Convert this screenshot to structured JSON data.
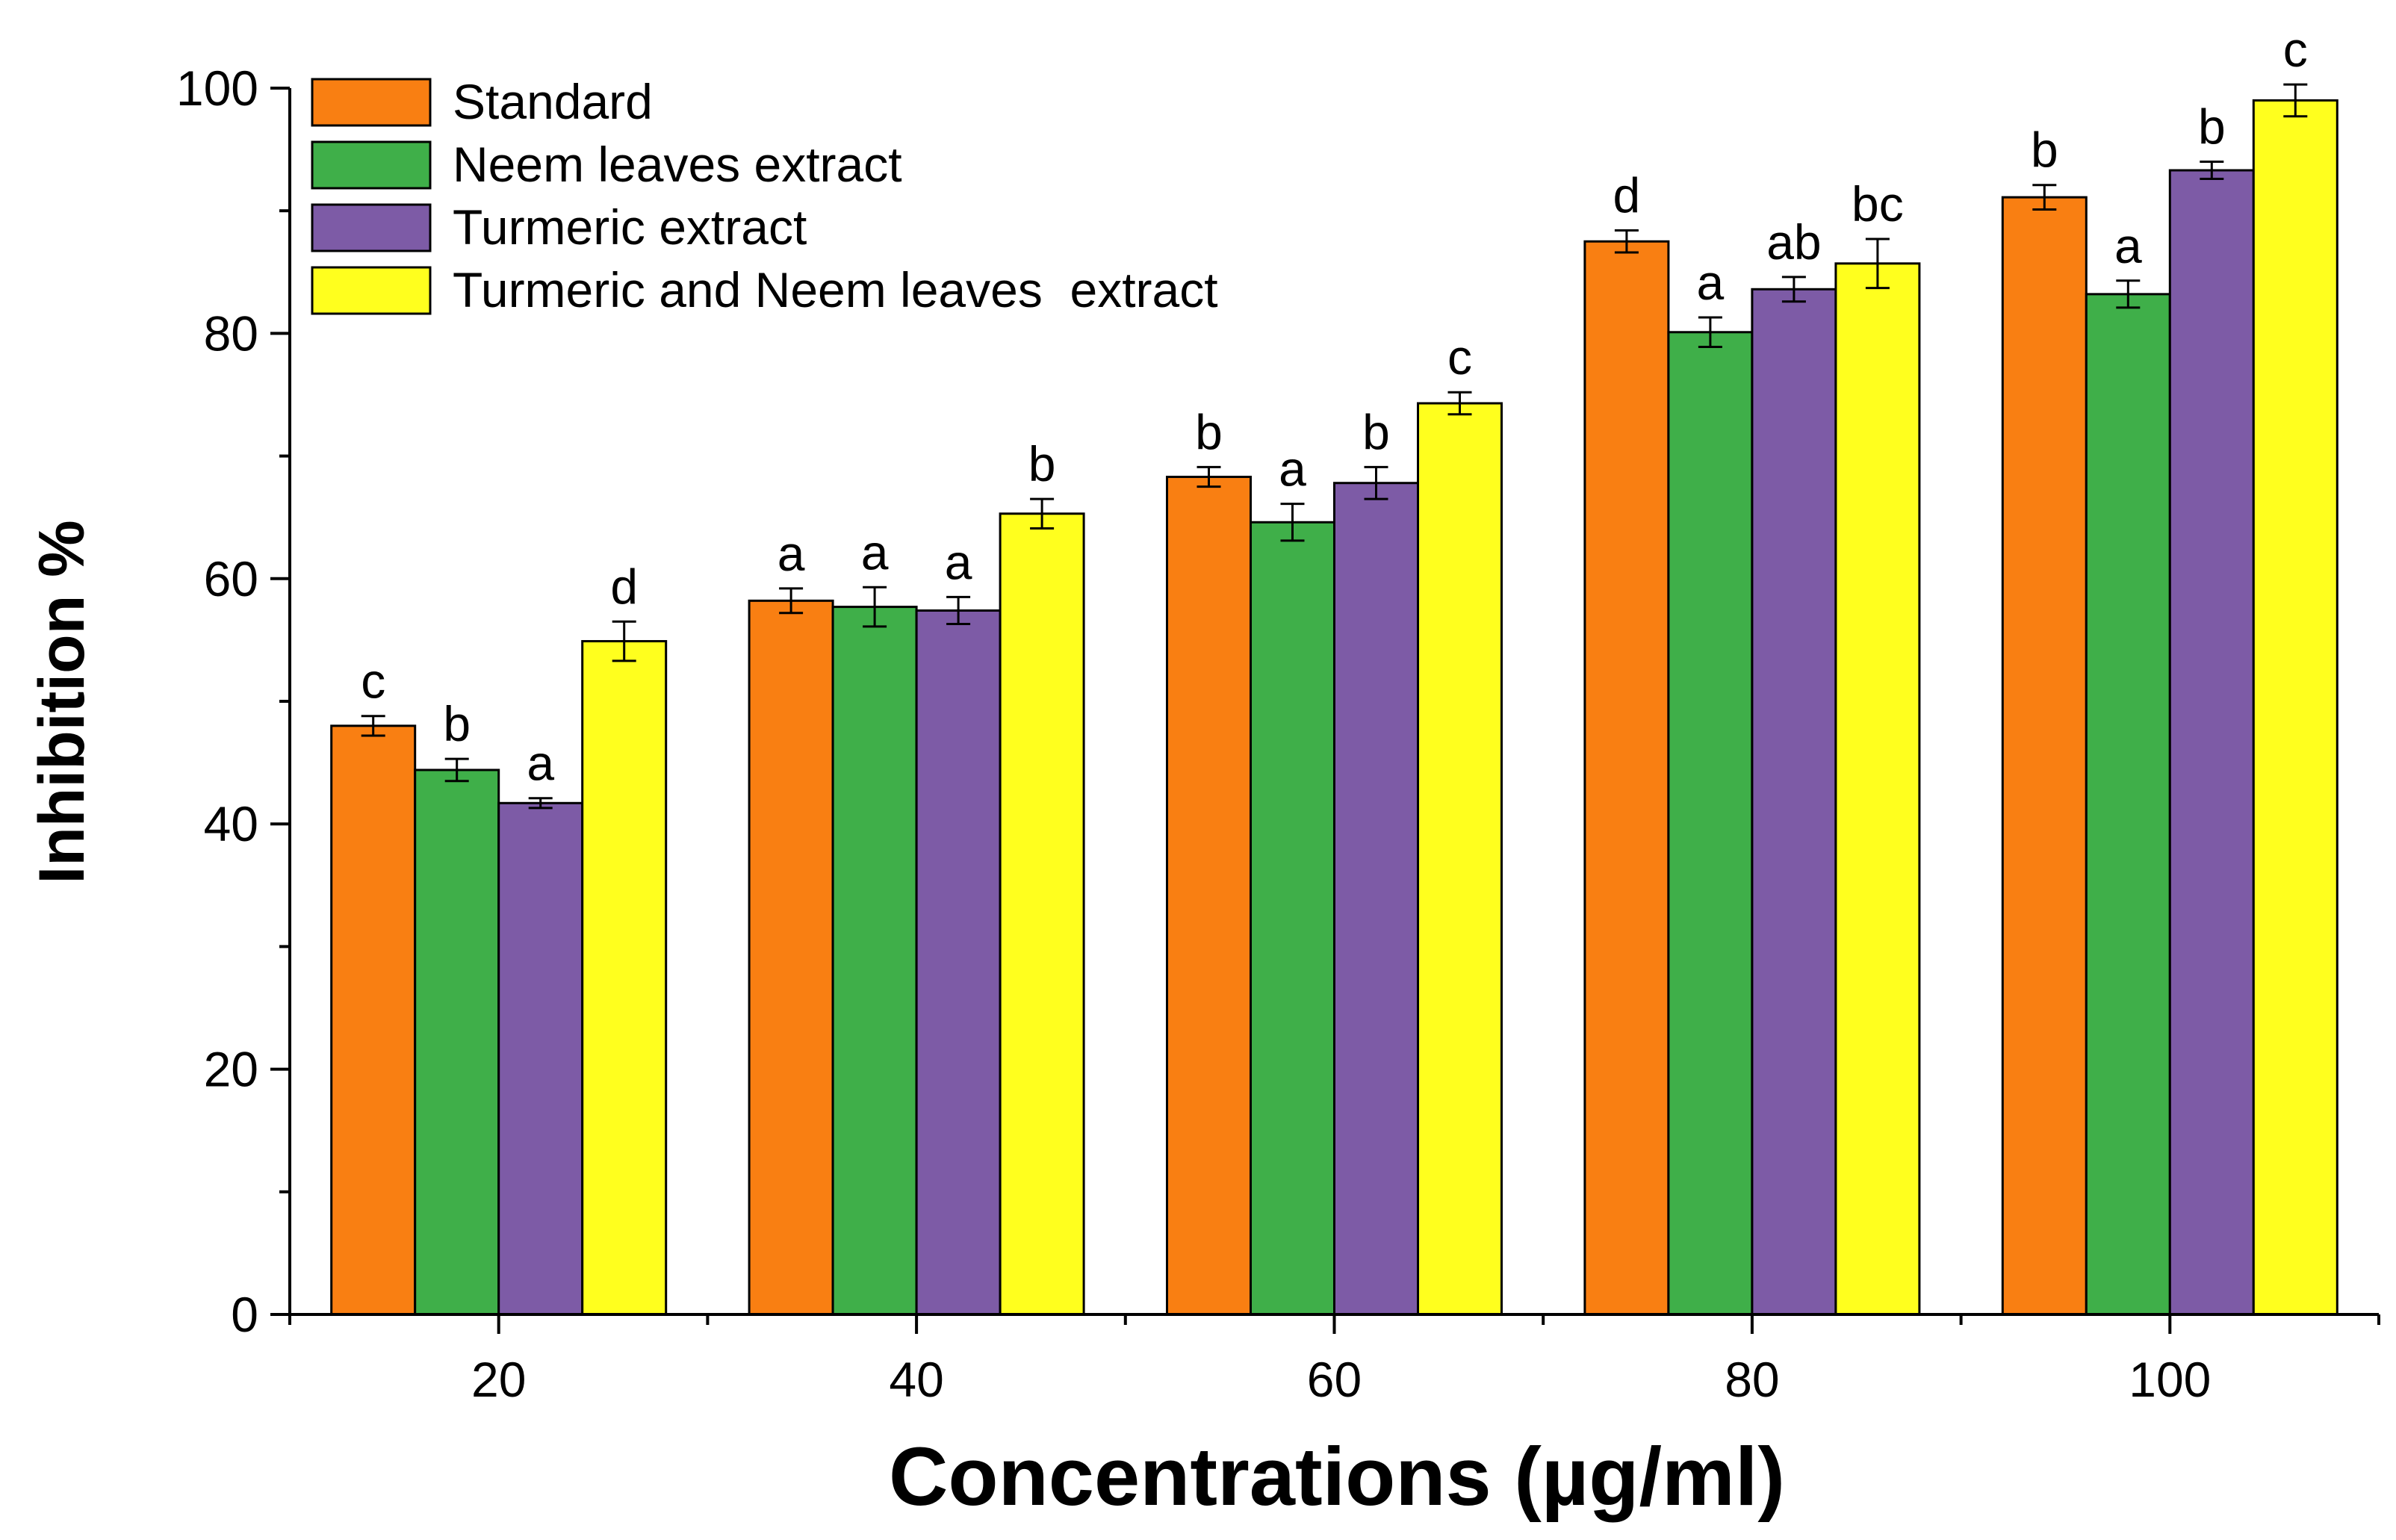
{
  "chart_data": {
    "type": "bar",
    "title": "",
    "xlabel": "Concentrations (µg/ml)",
    "ylabel": "Inhibition %",
    "categories": [
      "20",
      "40",
      "60",
      "80",
      "100"
    ],
    "ylim": [
      0,
      100
    ],
    "yticks": [
      "0",
      "20",
      "40",
      "60",
      "80",
      "100"
    ],
    "legend_position": "top-left",
    "grid": false,
    "series": [
      {
        "name": "Standard",
        "color": "#F97F12",
        "values": [
          48.0,
          58.2,
          68.3,
          87.5,
          91.1
        ],
        "errors": [
          0.8,
          1.0,
          0.8,
          0.9,
          1.0
        ],
        "labels": [
          "c",
          "a",
          "b",
          "d",
          "b"
        ]
      },
      {
        "name": "Neem leaves extract",
        "color": "#3FAF49",
        "values": [
          44.4,
          57.7,
          64.6,
          80.1,
          83.2
        ],
        "errors": [
          0.9,
          1.6,
          1.5,
          1.2,
          1.1
        ],
        "labels": [
          "b",
          "a",
          "a",
          "a",
          "a"
        ]
      },
      {
        "name": "Turmeric extract",
        "color": "#7D5BA6",
        "values": [
          41.7,
          57.4,
          67.8,
          83.6,
          93.3
        ],
        "errors": [
          0.4,
          1.1,
          1.3,
          1.0,
          0.7
        ],
        "labels": [
          "a",
          "a",
          "b",
          "ab",
          "b"
        ]
      },
      {
        "name": "Turmeric and Neem leaves  extract",
        "color": "#FFFF1E",
        "values": [
          54.9,
          65.3,
          74.3,
          85.7,
          99.0
        ],
        "errors": [
          1.6,
          1.2,
          0.9,
          2.0,
          1.3
        ],
        "labels": [
          "d",
          "b",
          "c",
          "bc",
          "c"
        ]
      }
    ]
  }
}
